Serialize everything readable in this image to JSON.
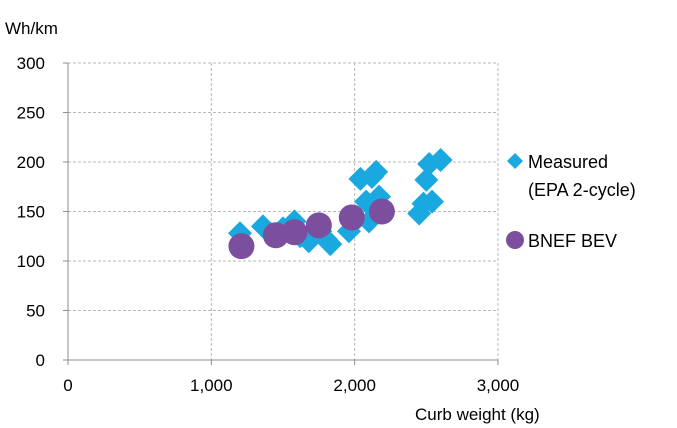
{
  "chart_data": {
    "type": "scatter",
    "xlabel": "Curb weight (kg)",
    "ylabel": "Wh/km",
    "xlim": [
      0,
      3000
    ],
    "ylim": [
      0,
      300
    ],
    "xticks": [
      0,
      1000,
      2000,
      3000
    ],
    "xtick_labels": [
      "0",
      "1,000",
      "2,000",
      "3,000"
    ],
    "yticks": [
      0,
      50,
      100,
      150,
      200,
      250,
      300
    ],
    "ytick_labels": [
      "0",
      "50",
      "100",
      "150",
      "200",
      "250",
      "300"
    ],
    "grid": "dashed",
    "legend_position": "right",
    "series": [
      {
        "name": "Measured (EPA 2-cycle)",
        "legend_lines": [
          "Measured",
          "(EPA 2-cycle)"
        ],
        "marker": "diamond",
        "color": "#1aa8e0",
        "points": [
          [
            1200,
            128
          ],
          [
            1360,
            135
          ],
          [
            1420,
            127
          ],
          [
            1500,
            133
          ],
          [
            1580,
            140
          ],
          [
            1620,
            125
          ],
          [
            1680,
            120
          ],
          [
            1760,
            130
          ],
          [
            1800,
            122
          ],
          [
            1830,
            117
          ],
          [
            1960,
            130
          ],
          [
            2000,
            140
          ],
          [
            2040,
            183
          ],
          [
            2080,
            160
          ],
          [
            2100,
            140
          ],
          [
            2120,
            185
          ],
          [
            2150,
            190
          ],
          [
            2170,
            165
          ],
          [
            2450,
            148
          ],
          [
            2480,
            158
          ],
          [
            2500,
            182
          ],
          [
            2520,
            198
          ],
          [
            2540,
            160
          ],
          [
            2600,
            202
          ]
        ]
      },
      {
        "name": "BNEF BEV",
        "marker": "circle",
        "color": "#7b4f9d",
        "points": [
          [
            1210,
            115
          ],
          [
            1450,
            126
          ],
          [
            1580,
            129
          ],
          [
            1750,
            136
          ],
          [
            1980,
            144
          ],
          [
            2190,
            150
          ]
        ]
      }
    ]
  }
}
